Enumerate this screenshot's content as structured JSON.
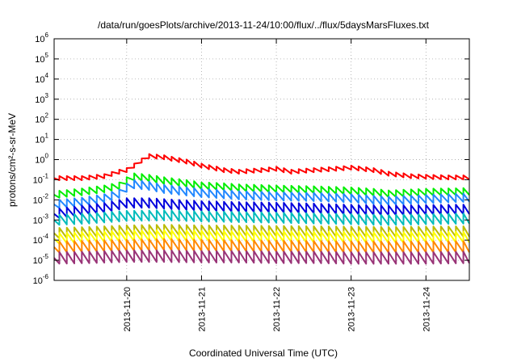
{
  "chart_data": {
    "type": "line",
    "title": "/data/run/goesPlots/archive/2013-11-24/10:00/flux/../flux/5daysMarsFluxes.txt",
    "xlabel": "Coordinated Universal Time (UTC)",
    "ylabel": "protons/cm²-s-sr-MeV",
    "yscale": "log",
    "ylim": [
      1e-06,
      1000000.0
    ],
    "xlim": [
      -0.97,
      4.58
    ],
    "grid": true,
    "x_tick_labels": [
      "2013-11-20",
      "2013-11-21",
      "2013-11-22",
      "2013-11-23",
      "2013-11-24"
    ],
    "x_tick_positions": [
      0,
      1,
      2,
      3,
      4
    ],
    "y_tick_exponents": [
      -6,
      -5,
      -4,
      -3,
      -2,
      -1,
      0,
      1,
      2,
      3,
      4,
      5,
      6
    ],
    "sawtooth_period_days": 0.1,
    "series": [
      {
        "color": "#ff0000",
        "x": [
          -0.97,
          -0.6,
          -0.3,
          -0.1,
          0.0,
          0.1,
          0.2,
          0.3,
          0.5,
          0.8,
          1.0,
          1.3,
          1.5,
          1.8,
          2.0,
          2.2,
          2.5,
          2.8,
          3.0,
          3.3,
          3.5,
          3.8,
          4.0,
          4.3,
          4.58
        ],
        "y": [
          0.12,
          0.12,
          0.15,
          0.25,
          0.3,
          0.5,
          0.9,
          1.5,
          1.3,
          0.8,
          0.5,
          0.3,
          0.25,
          0.3,
          0.35,
          0.25,
          0.3,
          0.35,
          0.4,
          0.3,
          0.2,
          0.15,
          0.14,
          0.13,
          0.13
        ],
        "amp": 1.6
      },
      {
        "color": "#00ee00",
        "x": [
          -0.97,
          -0.6,
          -0.3,
          -0.1,
          0.0,
          0.1,
          0.3,
          0.5,
          0.8,
          1.0,
          1.3,
          1.5,
          2.0,
          2.5,
          3.0,
          3.3,
          3.5,
          4.0,
          4.58
        ],
        "y": [
          0.018,
          0.025,
          0.035,
          0.05,
          0.09,
          0.14,
          0.12,
          0.09,
          0.065,
          0.05,
          0.045,
          0.04,
          0.035,
          0.032,
          0.028,
          0.024,
          0.02,
          0.024,
          0.026
        ],
        "amp": 2.2
      },
      {
        "color": "#2288ff",
        "x": [
          -0.97,
          -0.6,
          -0.3,
          -0.1,
          0.0,
          0.1,
          0.3,
          0.5,
          1.0,
          1.5,
          2.0,
          2.5,
          3.0,
          3.3,
          3.5,
          4.0,
          4.58
        ],
        "y": [
          0.006,
          0.008,
          0.012,
          0.02,
          0.04,
          0.06,
          0.05,
          0.035,
          0.022,
          0.017,
          0.015,
          0.014,
          0.012,
          0.01,
          0.009,
          0.011,
          0.013
        ],
        "amp": 2.6
      },
      {
        "color": "#0000dd",
        "x": [
          -0.97,
          -0.6,
          -0.3,
          0.0,
          0.3,
          0.6,
          1.0,
          1.5,
          2.0,
          2.5,
          3.0,
          3.5,
          4.0,
          4.58
        ],
        "y": [
          0.002,
          0.003,
          0.004,
          0.007,
          0.007,
          0.006,
          0.005,
          0.0045,
          0.0042,
          0.0038,
          0.0033,
          0.003,
          0.0032,
          0.0034
        ],
        "amp": 3.0
      },
      {
        "color": "#00bbbb",
        "x": [
          -0.97,
          -0.5,
          0.0,
          0.5,
          1.0,
          1.5,
          2.0,
          2.5,
          3.0,
          3.5,
          4.0,
          4.58
        ],
        "y": [
          0.001,
          0.0012,
          0.0016,
          0.0017,
          0.0015,
          0.0014,
          0.0013,
          0.0012,
          0.0011,
          0.001,
          0.0011,
          0.0012
        ],
        "amp": 3.2
      },
      {
        "color": "#bbbb00",
        "x": [
          -0.97,
          -0.5,
          0.0,
          0.5,
          1.0,
          1.5,
          2.0,
          2.5,
          3.0,
          3.5,
          4.0,
          4.58
        ],
        "y": [
          0.00022,
          0.00025,
          0.0003,
          0.00032,
          0.0003,
          0.00029,
          0.00028,
          0.00027,
          0.00026,
          0.00025,
          0.00026,
          0.00027
        ],
        "amp": 3.3
      },
      {
        "color": "#ffff00",
        "x": [
          -0.97,
          -0.5,
          0.0,
          0.5,
          1.0,
          1.5,
          2.0,
          2.5,
          3.0,
          3.5,
          4.0,
          4.58
        ],
        "y": [
          0.00012,
          0.00014,
          0.00016,
          0.00017,
          0.00016,
          0.00015,
          0.00015,
          0.00014,
          0.00014,
          0.00013,
          0.00014,
          0.00014
        ],
        "amp": 3.4
      },
      {
        "color": "#ff8800",
        "x": [
          -0.97,
          -0.5,
          0.0,
          0.5,
          1.0,
          1.5,
          2.0,
          2.5,
          3.0,
          3.5,
          4.0,
          4.58
        ],
        "y": [
          4.5e-05,
          5e-05,
          5.5e-05,
          6e-05,
          5.5e-05,
          5.2e-05,
          5e-05,
          4.8e-05,
          4.6e-05,
          4.5e-05,
          4.6e-05,
          4.7e-05
        ],
        "amp": 3.6
      },
      {
        "color": "#993377",
        "x": [
          -0.97,
          -0.5,
          0.0,
          0.5,
          1.0,
          1.5,
          2.0,
          2.5,
          3.0,
          3.5,
          4.0,
          4.58
        ],
        "y": [
          1.3e-05,
          1.4e-05,
          1.6e-05,
          1.6e-05,
          1.5e-05,
          1.5e-05,
          1.4e-05,
          1.4e-05,
          1.3e-05,
          1.3e-05,
          1.3e-05,
          1.4e-05
        ],
        "amp": 3.8
      }
    ]
  }
}
